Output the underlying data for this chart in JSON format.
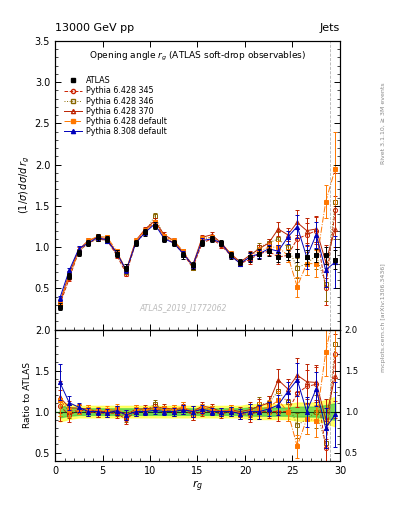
{
  "title_top": "13000 GeV pp",
  "title_right": "Jets",
  "plot_title": "Opening angle $r_g$ (ATLAS soft-drop observables)",
  "ylabel_main": "$(1/\\sigma)\\, d\\sigma/d\\, r_g$",
  "ylabel_ratio": "Ratio to ATLAS",
  "xlabel": "$r_g$",
  "watermark": "ATLAS_2019_I1772062",
  "rivet_text": "Rivet 3.1.10, ≥ 3M events",
  "arxiv_text": "mcplots.cern.ch [arXiv:1306.3436]",
  "x": [
    0.5,
    1.5,
    2.5,
    3.5,
    4.5,
    5.5,
    6.5,
    7.5,
    8.5,
    9.5,
    10.5,
    11.5,
    12.5,
    13.5,
    14.5,
    15.5,
    16.5,
    17.5,
    18.5,
    19.5,
    20.5,
    21.5,
    22.5,
    23.5,
    24.5,
    25.5,
    26.5,
    27.5,
    28.5,
    29.5
  ],
  "atlas_y": [
    0.28,
    0.65,
    0.93,
    1.05,
    1.12,
    1.1,
    0.92,
    0.75,
    1.05,
    1.18,
    1.26,
    1.1,
    1.05,
    0.9,
    0.78,
    1.05,
    1.1,
    1.05,
    0.9,
    0.82,
    0.88,
    0.92,
    0.95,
    0.88,
    0.9,
    0.9,
    0.88,
    0.9,
    0.9,
    0.85
  ],
  "atlas_yerr": [
    0.04,
    0.04,
    0.04,
    0.04,
    0.04,
    0.04,
    0.04,
    0.04,
    0.04,
    0.04,
    0.04,
    0.04,
    0.04,
    0.04,
    0.04,
    0.04,
    0.04,
    0.04,
    0.04,
    0.04,
    0.06,
    0.06,
    0.06,
    0.06,
    0.06,
    0.08,
    0.08,
    0.08,
    0.1,
    0.12
  ],
  "p6_345_y": [
    0.3,
    0.62,
    0.95,
    1.05,
    1.1,
    1.08,
    0.9,
    0.68,
    1.05,
    1.2,
    1.3,
    1.12,
    1.05,
    0.92,
    0.75,
    1.05,
    1.1,
    1.02,
    0.9,
    0.8,
    0.85,
    0.92,
    0.95,
    0.88,
    0.9,
    1.1,
    1.15,
    1.2,
    0.5,
    1.45
  ],
  "p6_345_yerr": [
    0.03,
    0.03,
    0.03,
    0.03,
    0.03,
    0.03,
    0.03,
    0.03,
    0.03,
    0.03,
    0.03,
    0.03,
    0.03,
    0.03,
    0.03,
    0.03,
    0.03,
    0.03,
    0.03,
    0.03,
    0.05,
    0.05,
    0.05,
    0.08,
    0.08,
    0.12,
    0.14,
    0.16,
    0.2,
    0.45
  ],
  "p6_346_y": [
    0.32,
    0.65,
    0.95,
    1.05,
    1.1,
    1.08,
    0.92,
    0.7,
    1.05,
    1.18,
    1.38,
    1.12,
    1.05,
    0.95,
    0.75,
    1.1,
    1.12,
    1.05,
    0.9,
    0.8,
    0.88,
    1.0,
    1.05,
    1.1,
    1.0,
    0.75,
    0.8,
    0.9,
    0.55,
    1.55
  ],
  "p6_346_yerr": [
    0.03,
    0.03,
    0.03,
    0.03,
    0.03,
    0.03,
    0.03,
    0.03,
    0.03,
    0.03,
    0.03,
    0.03,
    0.03,
    0.03,
    0.03,
    0.03,
    0.03,
    0.03,
    0.03,
    0.03,
    0.05,
    0.05,
    0.05,
    0.08,
    0.08,
    0.12,
    0.14,
    0.16,
    0.2,
    0.45
  ],
  "p6_370_y": [
    0.33,
    0.68,
    0.97,
    1.08,
    1.12,
    1.1,
    0.93,
    0.72,
    1.08,
    1.22,
    1.32,
    1.15,
    1.08,
    0.93,
    0.78,
    1.12,
    1.15,
    1.05,
    0.92,
    0.82,
    0.9,
    0.98,
    1.05,
    1.22,
    1.15,
    1.3,
    1.2,
    1.22,
    0.82,
    1.22
  ],
  "p6_370_yerr": [
    0.03,
    0.03,
    0.03,
    0.03,
    0.03,
    0.03,
    0.03,
    0.03,
    0.03,
    0.03,
    0.03,
    0.03,
    0.03,
    0.03,
    0.03,
    0.03,
    0.03,
    0.03,
    0.03,
    0.03,
    0.05,
    0.05,
    0.05,
    0.08,
    0.08,
    0.15,
    0.15,
    0.16,
    0.2,
    0.4
  ],
  "p6_def_y": [
    0.32,
    0.66,
    0.95,
    1.08,
    1.13,
    1.12,
    0.95,
    0.72,
    1.08,
    1.2,
    1.3,
    1.13,
    1.08,
    0.95,
    0.78,
    1.1,
    1.12,
    1.05,
    0.92,
    0.8,
    0.88,
    0.95,
    1.0,
    1.0,
    0.9,
    0.52,
    0.8,
    0.8,
    1.55,
    1.95
  ],
  "p6_def_yerr": [
    0.03,
    0.03,
    0.03,
    0.03,
    0.03,
    0.03,
    0.03,
    0.03,
    0.03,
    0.03,
    0.03,
    0.03,
    0.03,
    0.03,
    0.03,
    0.03,
    0.03,
    0.03,
    0.03,
    0.03,
    0.05,
    0.05,
    0.05,
    0.08,
    0.08,
    0.12,
    0.14,
    0.16,
    0.2,
    0.45
  ],
  "p8_def_y": [
    0.38,
    0.72,
    0.98,
    1.05,
    1.12,
    1.08,
    0.93,
    0.72,
    1.05,
    1.18,
    1.28,
    1.1,
    1.05,
    0.92,
    0.78,
    1.08,
    1.1,
    1.05,
    0.9,
    0.8,
    0.88,
    0.92,
    0.98,
    0.95,
    1.12,
    1.25,
    0.88,
    1.15,
    0.72,
    0.82
  ],
  "p8_def_yerr": [
    0.03,
    0.03,
    0.03,
    0.03,
    0.03,
    0.03,
    0.03,
    0.03,
    0.03,
    0.03,
    0.03,
    0.03,
    0.03,
    0.03,
    0.03,
    0.03,
    0.03,
    0.03,
    0.03,
    0.03,
    0.05,
    0.05,
    0.05,
    0.08,
    0.08,
    0.14,
    0.14,
    0.16,
    0.2,
    0.32
  ],
  "atlas_band_lower": [
    0.93,
    0.95,
    0.96,
    0.96,
    0.96,
    0.96,
    0.96,
    0.96,
    0.96,
    0.96,
    0.96,
    0.96,
    0.96,
    0.96,
    0.96,
    0.96,
    0.96,
    0.96,
    0.96,
    0.96,
    0.95,
    0.95,
    0.95,
    0.95,
    0.95,
    0.94,
    0.94,
    0.94,
    0.92,
    0.9
  ],
  "atlas_band_upper": [
    1.07,
    1.05,
    1.04,
    1.04,
    1.04,
    1.04,
    1.04,
    1.04,
    1.04,
    1.04,
    1.04,
    1.04,
    1.04,
    1.04,
    1.04,
    1.04,
    1.04,
    1.04,
    1.04,
    1.04,
    1.05,
    1.05,
    1.05,
    1.05,
    1.05,
    1.06,
    1.06,
    1.06,
    1.08,
    1.1
  ],
  "atlas_band2_lower": [
    0.88,
    0.91,
    0.93,
    0.93,
    0.93,
    0.93,
    0.93,
    0.93,
    0.93,
    0.93,
    0.93,
    0.93,
    0.93,
    0.93,
    0.93,
    0.93,
    0.93,
    0.93,
    0.93,
    0.93,
    0.91,
    0.91,
    0.91,
    0.91,
    0.91,
    0.89,
    0.89,
    0.89,
    0.86,
    0.82
  ],
  "atlas_band2_upper": [
    1.12,
    1.09,
    1.07,
    1.07,
    1.07,
    1.07,
    1.07,
    1.07,
    1.07,
    1.07,
    1.07,
    1.07,
    1.07,
    1.07,
    1.07,
    1.07,
    1.07,
    1.07,
    1.07,
    1.07,
    1.09,
    1.09,
    1.09,
    1.09,
    1.09,
    1.11,
    1.11,
    1.11,
    1.14,
    1.18
  ],
  "color_atlas": "#000000",
  "color_p6_345": "#cc2200",
  "color_p6_346": "#886600",
  "color_p6_370": "#bb2200",
  "color_p6_def": "#ff7700",
  "color_p8_def": "#0000bb",
  "color_band_yellow": "#ffff44",
  "color_band_green": "#44cc44",
  "xlim": [
    0,
    30
  ],
  "ylim_main": [
    0.0,
    3.5
  ],
  "ylim_ratio": [
    0.4,
    2.0
  ],
  "yticks_main": [
    0.5,
    1.0,
    1.5,
    2.0,
    2.5,
    3.0,
    3.5
  ],
  "yticks_ratio": [
    0.5,
    1.0,
    1.5,
    2.0
  ],
  "xticks": [
    0,
    5,
    10,
    15,
    20,
    25,
    30
  ]
}
